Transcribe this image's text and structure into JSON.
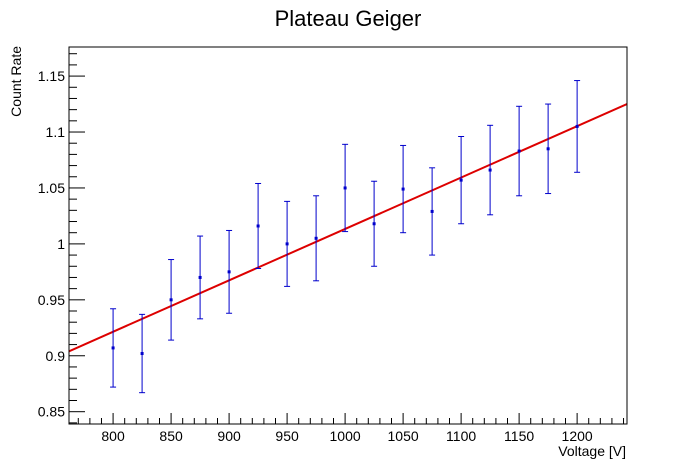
{
  "chart_data": {
    "type": "scatter",
    "title": "Plateau Geiger",
    "xlabel": "Voltage [V]",
    "ylabel": "Count Rate",
    "xlim": [
      762,
      1243
    ],
    "ylim": [
      0.839,
      1.176
    ],
    "x_ticks": [
      800,
      850,
      900,
      950,
      1000,
      1050,
      1100,
      1150,
      1200
    ],
    "x_tick_labels": [
      "800",
      "850",
      "900",
      "950",
      "1000",
      "1050",
      "1100",
      "1150",
      "1200"
    ],
    "y_ticks": [
      0.85,
      0.9,
      0.95,
      1.0,
      1.05,
      1.1,
      1.15
    ],
    "y_tick_labels": [
      "0.85",
      "0.9",
      "0.95",
      "1",
      "1.05",
      "1.1",
      "1.15"
    ],
    "grid": false,
    "legend": "none",
    "series": [
      {
        "type": "scatter-errorbar",
        "color": "#0000cc",
        "points": [
          {
            "x": 800,
            "y": 0.907,
            "err": 0.035
          },
          {
            "x": 825,
            "y": 0.902,
            "err": 0.035
          },
          {
            "x": 850,
            "y": 0.95,
            "err": 0.036
          },
          {
            "x": 875,
            "y": 0.97,
            "err": 0.037
          },
          {
            "x": 900,
            "y": 0.975,
            "err": 0.037
          },
          {
            "x": 925,
            "y": 1.016,
            "err": 0.038
          },
          {
            "x": 950,
            "y": 1.0,
            "err": 0.038
          },
          {
            "x": 975,
            "y": 1.005,
            "err": 0.038
          },
          {
            "x": 1000,
            "y": 1.05,
            "err": 0.039
          },
          {
            "x": 1025,
            "y": 1.018,
            "err": 0.038
          },
          {
            "x": 1050,
            "y": 1.049,
            "err": 0.039
          },
          {
            "x": 1075,
            "y": 1.029,
            "err": 0.039
          },
          {
            "x": 1100,
            "y": 1.057,
            "err": 0.039
          },
          {
            "x": 1125,
            "y": 1.066,
            "err": 0.04
          },
          {
            "x": 1150,
            "y": 1.083,
            "err": 0.04
          },
          {
            "x": 1175,
            "y": 1.085,
            "err": 0.04
          },
          {
            "x": 1200,
            "y": 1.105,
            "err": 0.041
          }
        ]
      },
      {
        "type": "line",
        "color": "#dd0000",
        "x": [
          762,
          1243
        ],
        "y": [
          0.904,
          1.125
        ]
      }
    ]
  }
}
